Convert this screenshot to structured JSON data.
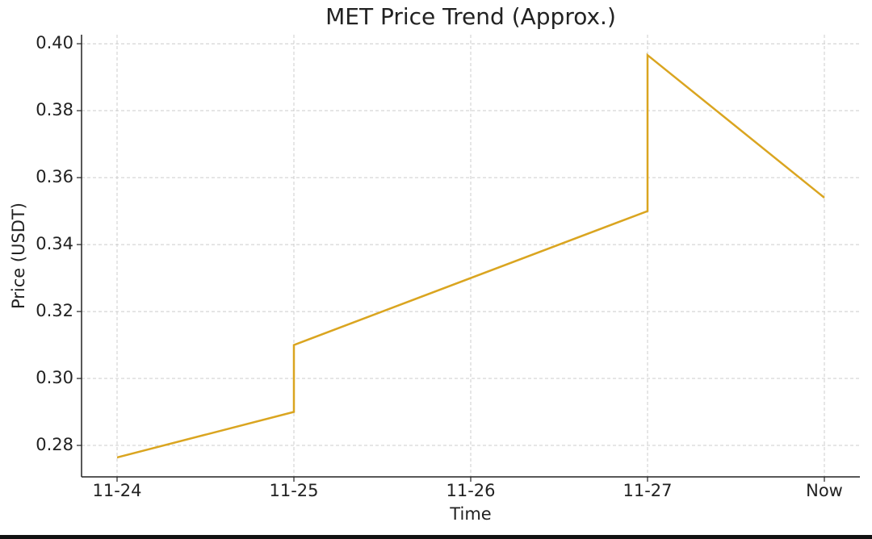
{
  "chart_data": {
    "type": "line",
    "title": "MET Price Trend (Approx.)",
    "x_label": "Time",
    "y_label": "Price (USDT)",
    "xticks": [
      "11-24",
      "11-25",
      "11-26",
      "11-27",
      "Now"
    ],
    "x": [
      "11-24",
      "11-25",
      "11-25",
      "11-27",
      "11-27",
      "Now"
    ],
    "series": [
      {
        "name": "MET",
        "color": "#daa520",
        "values": [
          0.2764,
          0.29,
          0.31,
          0.35,
          0.3966,
          0.354
        ]
      }
    ],
    "ylim": [
      0.2706,
      0.4027
    ],
    "yticks": [
      {
        "value": 0.28,
        "label": "0.28"
      },
      {
        "value": 0.3,
        "label": "0.30"
      },
      {
        "value": 0.32,
        "label": "0.32"
      },
      {
        "value": 0.34,
        "label": "0.34"
      },
      {
        "value": 0.36,
        "label": "0.36"
      },
      {
        "value": 0.38,
        "label": "0.38"
      },
      {
        "value": 0.4,
        "label": "0.40"
      }
    ],
    "grid": true
  }
}
